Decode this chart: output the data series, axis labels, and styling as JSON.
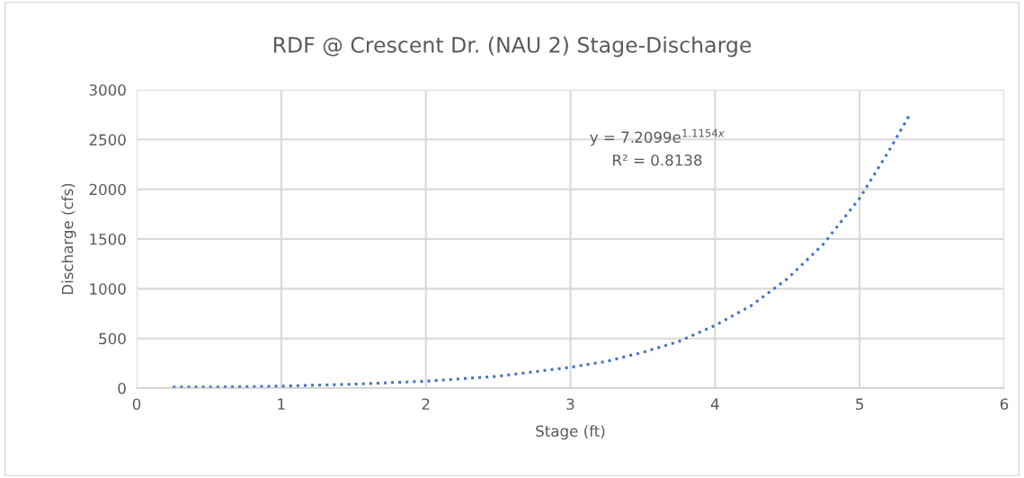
{
  "chart_data": {
    "type": "line",
    "title": "RDF @ Crescent Dr. (NAU 2) Stage-Discharge",
    "xlabel": "Stage (ft)",
    "ylabel": "Discharge (cfs)",
    "x": [
      0.25,
      0.5,
      1,
      1.5,
      2,
      2.5,
      3,
      3.25,
      3.5,
      3.75,
      4,
      4.25,
      4.5,
      4.75,
      5,
      5.2,
      5.35
    ],
    "series": [
      {
        "color": "#4472c4",
        "values": [
          10,
          10,
          20,
          40,
          70,
          120,
          210,
          270,
          360,
          470,
          630,
          830,
          1100,
          1450,
          1910,
          2380,
          2760
        ]
      }
    ],
    "line_style": "dotted",
    "marker": "none",
    "xlim": [
      0,
      6
    ],
    "xticks": [
      0,
      1,
      2,
      3,
      4,
      5,
      6
    ],
    "ylim": [
      0,
      3000
    ],
    "yticks": [
      0,
      500,
      1000,
      1500,
      2000,
      2500,
      3000
    ],
    "grid": true,
    "annotations": [
      "y = 7.2099e$^{1.1154x}$",
      "R² = 0.8138"
    ]
  }
}
